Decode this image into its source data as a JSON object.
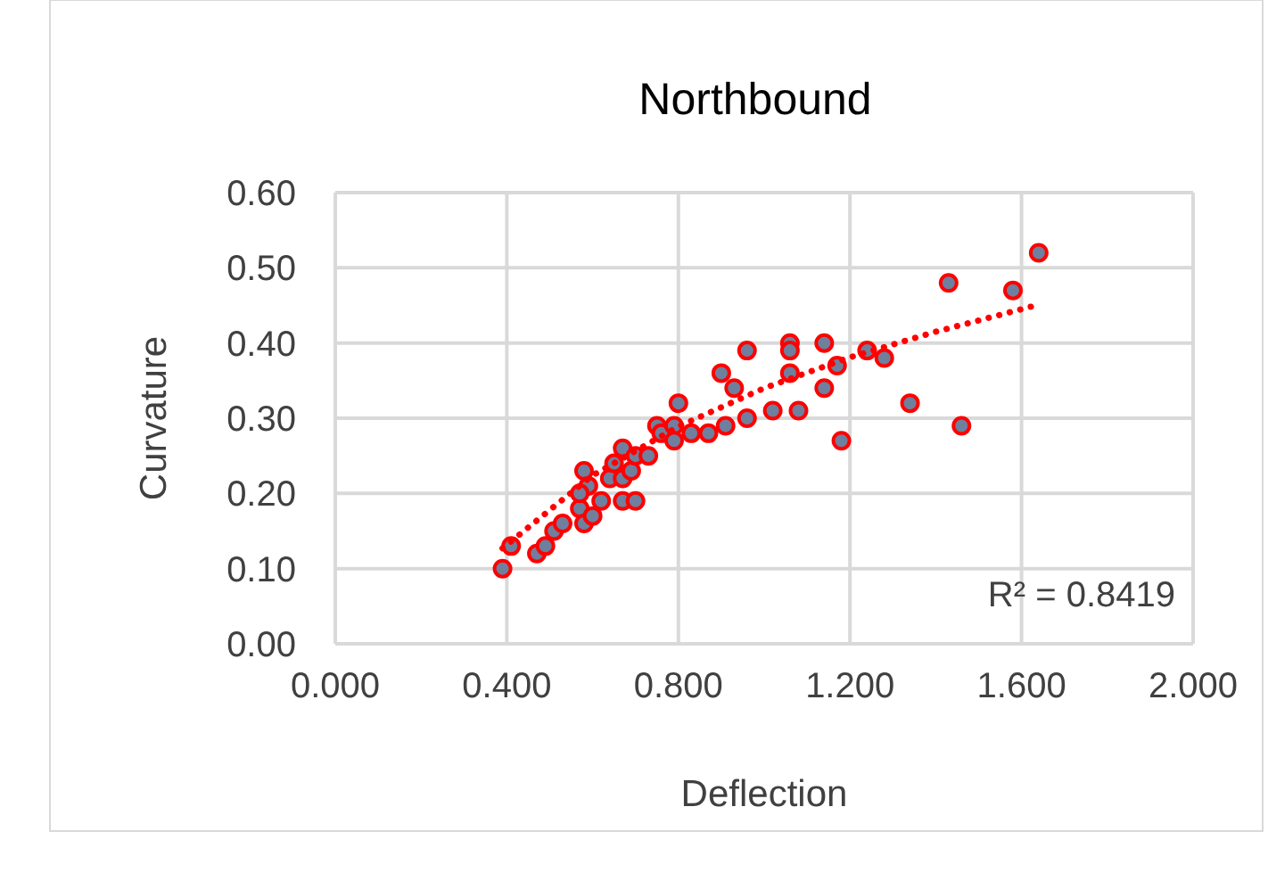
{
  "chart_data": {
    "type": "scatter",
    "title": "Northbound",
    "xlabel": "Deflection",
    "ylabel": "Curvature",
    "xlim": [
      0,
      2
    ],
    "xticks": [
      {
        "value": 0,
        "label": "0.000"
      },
      {
        "value": 0.4,
        "label": "0.400"
      },
      {
        "value": 0.8,
        "label": "0.800"
      },
      {
        "value": 1.2,
        "label": "1.200"
      },
      {
        "value": 1.6,
        "label": "1.600"
      },
      {
        "value": 2,
        "label": "2.000"
      }
    ],
    "ylim": [
      0,
      0.6
    ],
    "yticks": [
      {
        "value": 0,
        "label": "0.00"
      },
      {
        "value": 0.1,
        "label": "0.10"
      },
      {
        "value": 0.2,
        "label": "0.20"
      },
      {
        "value": 0.3,
        "label": "0.30"
      },
      {
        "value": 0.4,
        "label": "0.40"
      },
      {
        "value": 0.5,
        "label": "0.50"
      },
      {
        "value": 0.6,
        "label": "0.60"
      }
    ],
    "grid": true,
    "marker": "circle",
    "annotations": [
      "R² = 0.8419"
    ],
    "series": [
      {
        "color": "#6f7f9e",
        "x": [
          0.39,
          0.41,
          0.47,
          0.49,
          0.51,
          0.53,
          0.57,
          0.58,
          0.6,
          0.58,
          0.59,
          0.57,
          0.62,
          0.64,
          0.65,
          0.67,
          0.67,
          0.67,
          0.7,
          0.69,
          0.7,
          0.73,
          0.75,
          0.76,
          0.79,
          0.79,
          0.83,
          0.87,
          0.91,
          0.96,
          1.02,
          1.08,
          0.8,
          0.9,
          0.93,
          0.96,
          1.06,
          1.06,
          1.06,
          1.14,
          1.17,
          1.24,
          1.28,
          1.14,
          1.34,
          1.18,
          1.46,
          1.43,
          1.58,
          1.64
        ],
        "values": [
          0.1,
          0.13,
          0.12,
          0.13,
          0.15,
          0.16,
          0.18,
          0.16,
          0.17,
          0.23,
          0.21,
          0.2,
          0.19,
          0.22,
          0.24,
          0.26,
          0.22,
          0.19,
          0.19,
          0.23,
          0.25,
          0.25,
          0.29,
          0.28,
          0.29,
          0.27,
          0.28,
          0.28,
          0.29,
          0.3,
          0.31,
          0.31,
          0.32,
          0.36,
          0.34,
          0.39,
          0.4,
          0.39,
          0.36,
          0.4,
          0.37,
          0.39,
          0.38,
          0.34,
          0.32,
          0.27,
          0.29,
          0.48,
          0.47,
          0.52
        ]
      },
      {
        "type": "line",
        "color": "#ff0000",
        "line_style": "dotted",
        "marker": "none",
        "x": [
          0.39,
          0.6,
          0.8,
          1.0,
          1.2,
          1.4,
          1.64
        ],
        "values": [
          0.127,
          0.224,
          0.289,
          0.34,
          0.381,
          0.415,
          0.451
        ]
      }
    ]
  }
}
